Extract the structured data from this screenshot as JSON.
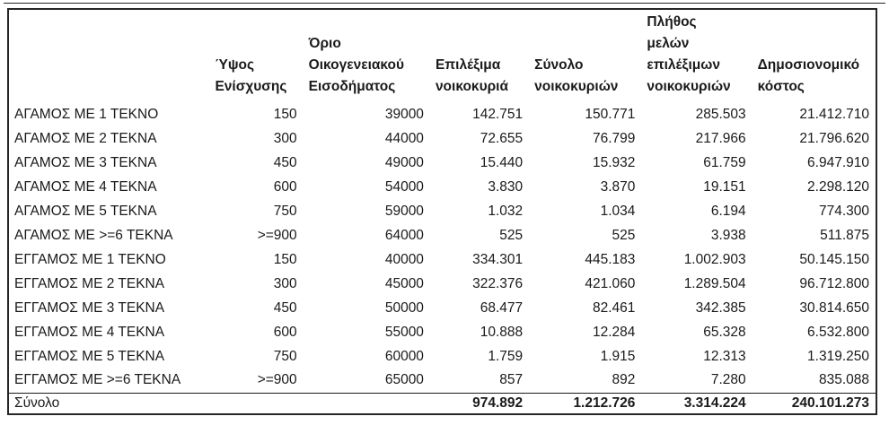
{
  "page": {
    "background": "#ffffff",
    "text_color": "#1a1a1a",
    "border_color": "#262626"
  },
  "chart_data": {
    "type": "table",
    "columns": [
      "",
      "Ύψος Ενίσχυσης",
      "Όριο Οικογενειακού Εισοδήματος",
      "Επιλέξιμα νοικοκυριά",
      "Σύνολο νοικοκυριών",
      "Πλήθος μελών επιλέξιμων νοικοκυριών",
      "Δημοσιονομικό κόστος"
    ],
    "rows": [
      [
        "ΑΓΑΜΟΣ ΜΕ 1 ΤΕΚΝΟ",
        "150",
        "39000",
        "142.751",
        "150.771",
        "285.503",
        "21.412.710"
      ],
      [
        "ΑΓΑΜΟΣ ΜΕ 2 ΤΕΚΝΑ",
        "300",
        "44000",
        "72.655",
        "76.799",
        "217.966",
        "21.796.620"
      ],
      [
        "ΑΓΑΜΟΣ ΜΕ 3 ΤΕΚΝΑ",
        "450",
        "49000",
        "15.440",
        "15.932",
        "61.759",
        "6.947.910"
      ],
      [
        "ΑΓΑΜΟΣ ΜΕ 4 ΤΕΚΝΑ",
        "600",
        "54000",
        "3.830",
        "3.870",
        "19.151",
        "2.298.120"
      ],
      [
        "ΑΓΑΜΟΣ ΜΕ 5 ΤΕΚΝΑ",
        "750",
        "59000",
        "1.032",
        "1.034",
        "6.194",
        "774.300"
      ],
      [
        "ΑΓΑΜΟΣ ΜΕ >=6 ΤΕΚΝΑ",
        ">=900",
        "64000",
        "525",
        "525",
        "3.938",
        "511.875"
      ],
      [
        "ΕΓΓΑΜΟΣ ΜΕ 1 ΤΕΚΝΟ",
        "150",
        "40000",
        "334.301",
        "445.183",
        "1.002.903",
        "50.145.150"
      ],
      [
        "ΕΓΓΑΜΟΣ ΜΕ 2 ΤΕΚΝΑ",
        "300",
        "45000",
        "322.376",
        "421.060",
        "1.289.504",
        "96.712.800"
      ],
      [
        "ΕΓΓΑΜΟΣ ΜΕ 3 ΤΕΚΝΑ",
        "450",
        "50000",
        "68.477",
        "82.461",
        "342.385",
        "30.814.650"
      ],
      [
        "ΕΓΓΑΜΟΣ ΜΕ 4 ΤΕΚΝΑ",
        "600",
        "55000",
        "10.888",
        "12.284",
        "65.328",
        "6.532.800"
      ],
      [
        "ΕΓΓΑΜΟΣ ΜΕ 5 ΤΕΚΝΑ",
        "750",
        "60000",
        "1.759",
        "1.915",
        "12.313",
        "1.319.250"
      ],
      [
        "ΕΓΓΑΜΟΣ ΜΕ >=6 ΤΕΚΝΑ",
        ">=900",
        "65000",
        "857",
        "892",
        "7.280",
        "835.088"
      ]
    ],
    "total": {
      "label": "Σύνολο",
      "values": [
        "",
        "",
        "974.892",
        "1.212.726",
        "3.314.224",
        "240.101.273"
      ]
    }
  }
}
